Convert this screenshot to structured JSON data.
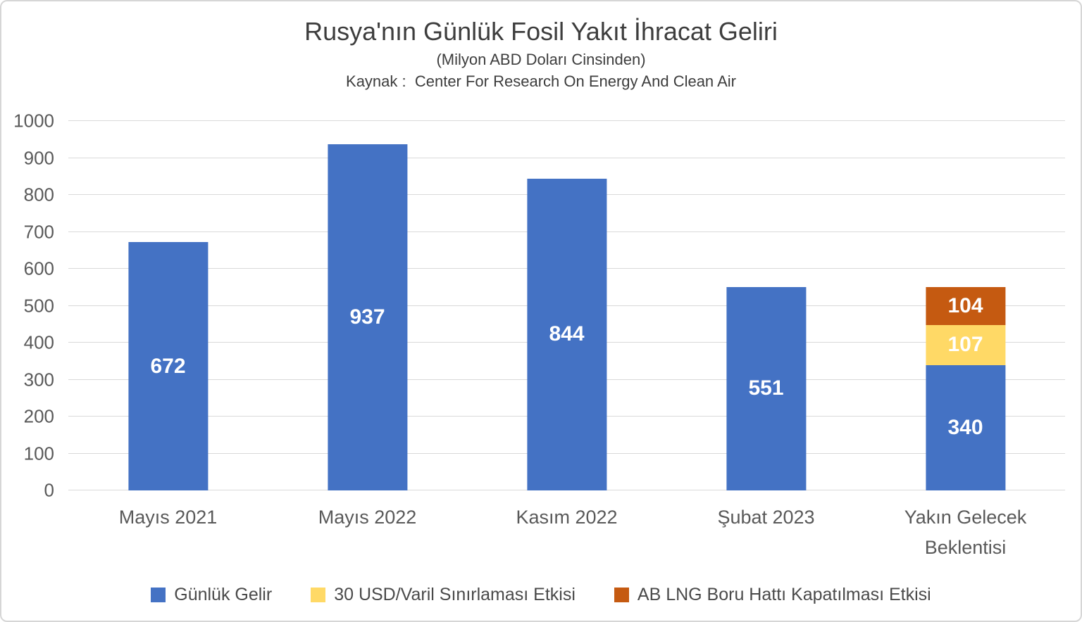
{
  "chart_data": {
    "type": "bar",
    "stacked": true,
    "title": "Rusya'nın Günlük Fosil Yakıt İhracat Geliri",
    "subtitle": "(Milyon ABD Doları Cinsinden)",
    "source": "Kaynak :  Center For Research On Energy And Clean Air",
    "categories": [
      "Mayıs 2021",
      "Mayıs 2022",
      "Kasım 2022",
      "Şubat 2023",
      "Yakın Gelecek Beklentisi"
    ],
    "series": [
      {
        "name": "Günlük Gelir",
        "color": "#4472C4",
        "values": [
          672,
          937,
          844,
          551,
          340
        ]
      },
      {
        "name": "30 USD/Varil Sınırlaması Etkisi",
        "color": "#FFD966",
        "values": [
          0,
          0,
          0,
          0,
          107
        ]
      },
      {
        "name": "AB LNG Boru Hattı Kapatılması Etkisi",
        "color": "#C55A11",
        "values": [
          0,
          0,
          0,
          0,
          104
        ]
      }
    ],
    "ylim": [
      0,
      1000
    ],
    "ytick_step": 100,
    "grid": true,
    "gridline_color": "#d9d9d9",
    "legend_position": "bottom",
    "data_labels": true,
    "data_label_color": "#ffffff"
  }
}
